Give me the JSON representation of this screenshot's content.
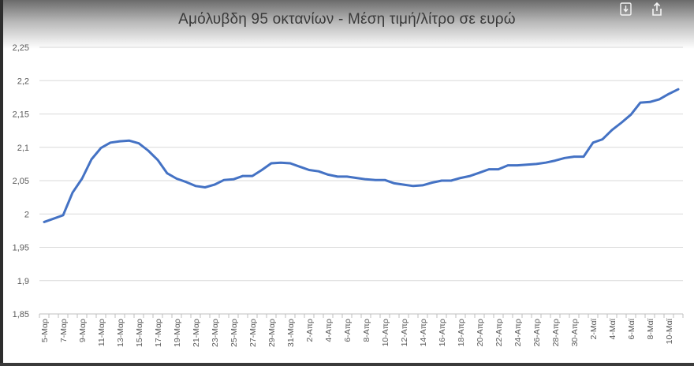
{
  "chart_data": {
    "type": "line",
    "title": "Αμόλυβδη 95 οκτανίων - Μέση τιμή/λίτρο σε ευρώ",
    "xlabel": "",
    "ylabel": "",
    "ylim": [
      1.85,
      2.25
    ],
    "yticks": [
      "2,25",
      "2,2",
      "2,15",
      "2,1",
      "2,05",
      "2",
      "1,95",
      "1,9",
      "1,85"
    ],
    "ytick_values": [
      2.25,
      2.2,
      2.15,
      2.1,
      2.05,
      2.0,
      1.95,
      1.9,
      1.85
    ],
    "grid": true,
    "legend": "none",
    "line_color": "#4472C4",
    "categories": [
      "5-Μαρ",
      "6-Μαρ",
      "7-Μαρ",
      "8-Μαρ",
      "9-Μαρ",
      "10-Μαρ",
      "11-Μαρ",
      "12-Μαρ",
      "13-Μαρ",
      "14-Μαρ",
      "15-Μαρ",
      "16-Μαρ",
      "17-Μαρ",
      "18-Μαρ",
      "19-Μαρ",
      "20-Μαρ",
      "21-Μαρ",
      "22-Μαρ",
      "23-Μαρ",
      "24-Μαρ",
      "25-Μαρ",
      "26-Μαρ",
      "27-Μαρ",
      "28-Μαρ",
      "29-Μαρ",
      "30-Μαρ",
      "31-Μαρ",
      "1-Απρ",
      "2-Απρ",
      "3-Απρ",
      "4-Απρ",
      "5-Απρ",
      "6-Απρ",
      "7-Απρ",
      "8-Απρ",
      "9-Απρ",
      "10-Απρ",
      "11-Απρ",
      "12-Απρ",
      "13-Απρ",
      "14-Απρ",
      "15-Απρ",
      "16-Απρ",
      "17-Απρ",
      "18-Απρ",
      "19-Απρ",
      "20-Απρ",
      "21-Απρ",
      "22-Απρ",
      "23-Απρ",
      "24-Απρ",
      "25-Απρ",
      "26-Απρ",
      "27-Απρ",
      "28-Απρ",
      "29-Απρ",
      "30-Απρ",
      "1-Μαϊ",
      "2-Μαϊ",
      "3-Μαϊ",
      "4-Μαϊ",
      "5-Μαϊ",
      "6-Μαϊ",
      "7-Μαϊ",
      "8-Μαϊ",
      "9-Μαϊ",
      "10-Μαϊ",
      "11-Μαϊ"
    ],
    "tick_labels": [
      "5-Μαρ",
      "7-Μαρ",
      "9-Μαρ",
      "11-Μαρ",
      "13-Μαρ",
      "15-Μαρ",
      "17-Μαρ",
      "19-Μαρ",
      "21-Μαρ",
      "23-Μαρ",
      "25-Μαρ",
      "27-Μαρ",
      "29-Μαρ",
      "31-Μαρ",
      "2-Απρ",
      "4-Απρ",
      "6-Απρ",
      "8-Απρ",
      "10-Απρ",
      "12-Απρ",
      "14-Απρ",
      "16-Απρ",
      "18-Απρ",
      "20-Απρ",
      "22-Απρ",
      "24-Απρ",
      "26-Απρ",
      "28-Απρ",
      "30-Απρ",
      "2-Μαϊ",
      "4-Μαϊ",
      "6-Μαϊ",
      "8-Μαϊ",
      "10-Μαϊ"
    ],
    "series": [
      {
        "values": [
          1.988,
          1.993,
          1.998,
          2.032,
          2.053,
          2.082,
          2.099,
          2.107,
          2.109,
          2.11,
          2.106,
          2.095,
          2.081,
          2.061,
          2.053,
          2.048,
          2.042,
          2.04,
          2.044,
          2.051,
          2.052,
          2.057,
          2.057,
          2.066,
          2.076,
          2.077,
          2.076,
          2.071,
          2.066,
          2.064,
          2.059,
          2.056,
          2.056,
          2.054,
          2.052,
          2.051,
          2.051,
          2.046,
          2.044,
          2.042,
          2.043,
          2.047,
          2.05,
          2.05,
          2.054,
          2.057,
          2.062,
          2.067,
          2.067,
          2.073,
          2.073,
          2.074,
          2.075,
          2.077,
          2.08,
          2.084,
          2.086,
          2.086,
          2.107,
          2.112,
          2.126,
          2.137,
          2.149,
          2.167,
          2.168,
          2.172,
          2.18,
          2.187
        ]
      }
    ]
  },
  "toolbar": {
    "icons": [
      "filter-icon",
      "share-icon"
    ]
  }
}
